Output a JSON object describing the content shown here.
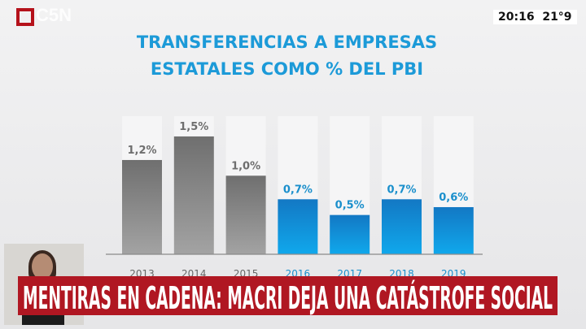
{
  "channel": {
    "name": "C5N",
    "time": "20:16",
    "temperature": "21°9"
  },
  "chart_data": {
    "type": "bar",
    "title": [
      "TRANSFERENCIAS A EMPRESAS",
      "ESTATALES COMO % DEL PBI"
    ],
    "categories": [
      "2013",
      "2014",
      "2015",
      "2016",
      "2017",
      "2018",
      "2019"
    ],
    "values": [
      1.2,
      1.5,
      1.0,
      0.7,
      0.5,
      0.7,
      0.6
    ],
    "labels": [
      "1,2%",
      "1,5%",
      "1,0%",
      "0,7%",
      "0,5%",
      "0,7%",
      "0,6%"
    ],
    "ylim": [
      0,
      1.75
    ],
    "xlabel": "",
    "ylabel": "",
    "colors": {
      "before": "#7b7b7b",
      "after": "#1590d8",
      "label_before": "#6e6e6e",
      "label_after": "#1a8fcc"
    },
    "highlight_from": "2016"
  },
  "headline": "MENTIRAS EN CADENA: MACRI DEJA UNA CATÁSTROFE SOCIAL"
}
